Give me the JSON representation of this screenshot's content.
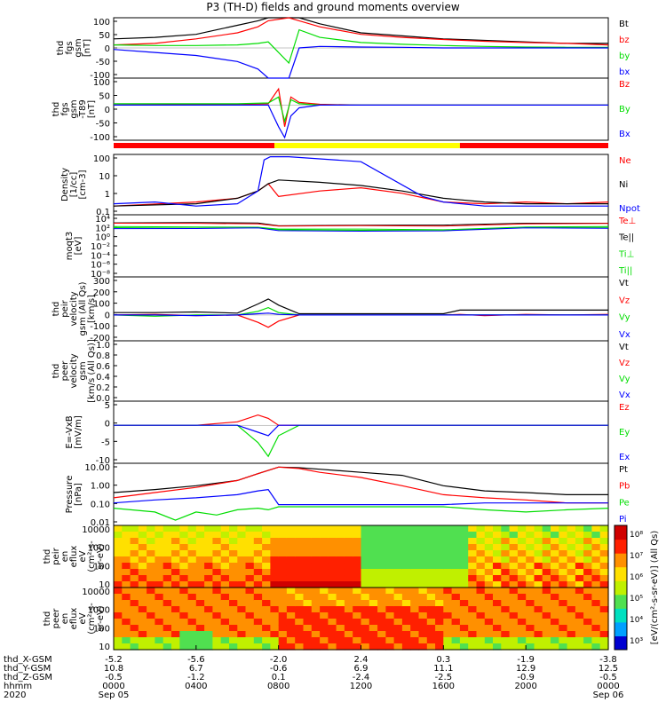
{
  "title": "P3 (TH-D) fields and ground moments overview",
  "colors": {
    "black": "#000000",
    "red": "#ff0000",
    "green": "#00dd00",
    "blue": "#0000ff",
    "yellow": "#ffff00"
  },
  "panels": [
    {
      "id": "fgs-gsm",
      "label": [
        "thd",
        "fgs",
        "gsm",
        "[nT]"
      ],
      "ticks": [
        "100",
        "50",
        "0",
        "-50",
        "-100"
      ],
      "legend": [
        {
          "t": "Bt",
          "c": "black"
        },
        {
          "t": "bz",
          "c": "red"
        },
        {
          "t": "by",
          "c": "green"
        },
        {
          "t": "bx",
          "c": "blue"
        }
      ]
    },
    {
      "id": "fgs-gsm-tilt",
      "label": [
        "thd",
        "fgs",
        "gsm",
        "-T89",
        "[nT]"
      ],
      "ticks": [
        "100",
        "50",
        "0",
        "-50",
        "-100"
      ],
      "legend": [
        {
          "t": "Bz",
          "c": "red"
        },
        {
          "t": "By",
          "c": "green"
        },
        {
          "t": "Bx",
          "c": "blue"
        }
      ]
    },
    {
      "id": "density",
      "label": [
        "Density",
        "[1/cc]",
        "[cm-3]"
      ],
      "ticks": [
        "100",
        "10",
        "1",
        "0.1"
      ],
      "legend": [
        {
          "t": "Ne",
          "c": "red"
        },
        {
          "t": "Ni",
          "c": "black"
        },
        {
          "t": "Npot",
          "c": "blue"
        }
      ]
    },
    {
      "id": "temperature",
      "label": [
        "moqt3",
        "[eV]"
      ],
      "ticks": [
        "10⁴",
        "10²",
        "10⁰",
        "10⁻²",
        "10⁻⁴",
        "10⁻⁶",
        "10⁻⁸"
      ],
      "legend": [
        {
          "t": "Te⊥",
          "c": "red"
        },
        {
          "t": "Te||",
          "c": "black"
        },
        {
          "t": "Ti⊥",
          "c": "green"
        },
        {
          "t": "Ti||",
          "c": "green"
        }
      ]
    },
    {
      "id": "peir-velocity",
      "label": [
        "thd",
        "peir",
        "velocity",
        "gsm (All Qs)",
        "[km/s]"
      ],
      "ticks": [
        "300",
        "200",
        "100",
        "0",
        "-100",
        "-200"
      ],
      "legend": [
        {
          "t": "Vt",
          "c": "black"
        },
        {
          "t": "Vz",
          "c": "red"
        },
        {
          "t": "Vy",
          "c": "green"
        },
        {
          "t": "Vx",
          "c": "blue"
        }
      ]
    },
    {
      "id": "peer-velocity",
      "label": [
        "thd",
        "peer",
        "velocity",
        "gsm",
        "[km/s (All Qs)]"
      ],
      "ticks": [
        "1.0",
        "0.8",
        "0.6",
        "0.4",
        "0.2",
        "0.0"
      ],
      "legend": [
        {
          "t": "Vt",
          "c": "black"
        },
        {
          "t": "Vz",
          "c": "red"
        },
        {
          "t": "Vy",
          "c": "green"
        },
        {
          "t": "Vx",
          "c": "blue"
        }
      ]
    },
    {
      "id": "efield",
      "label": [
        "E=-VxB",
        "[mV/m]"
      ],
      "ticks": [
        "5",
        "0",
        "-5",
        "-10"
      ],
      "legend": [
        {
          "t": "Ez",
          "c": "red"
        },
        {
          "t": "Ey",
          "c": "green"
        },
        {
          "t": "Ex",
          "c": "blue"
        }
      ]
    },
    {
      "id": "pressure",
      "label": [
        "Pressure",
        "[nPa]"
      ],
      "ticks": [
        "10.00",
        "1.00",
        "0.10",
        "0.01"
      ],
      "legend": [
        {
          "t": "Pt",
          "c": "black"
        },
        {
          "t": "Pb",
          "c": "red"
        },
        {
          "t": "Pe",
          "c": "green"
        },
        {
          "t": "Pi",
          "c": "blue"
        }
      ]
    },
    {
      "id": "peir-eflux",
      "label": [
        "thd",
        "peir",
        "en",
        "eflux",
        "eV",
        "(cm²-s-",
        "sr-eV)"
      ],
      "ticks": [
        "10000",
        "1000",
        "100",
        "10"
      ]
    },
    {
      "id": "peer-eflux",
      "label": [
        "thd",
        "peer",
        "en",
        "eflux",
        "eV",
        "(cm²-s-",
        "sr-eV)"
      ],
      "ticks": [
        "10000",
        "1000",
        "100",
        "10"
      ]
    }
  ],
  "colorbar": {
    "ticks": [
      "10⁸",
      "10⁷",
      "10⁶",
      "10⁵",
      "10⁴",
      "10³"
    ],
    "label": "[eV/(cm²-s-sr-eV)] (All Qs)"
  },
  "xaxis": {
    "row_labels": [
      "thd_X-GSM",
      "thd_Y-GSM",
      "thd_Z-GSM",
      "hhmm",
      "2020"
    ],
    "ticks": [
      {
        "x": "-5.2",
        "y": "10.8",
        "z": "-0.5",
        "t": "0000",
        "d": "Sep 05"
      },
      {
        "x": "-5.6",
        "y": "6.7",
        "z": "-1.2",
        "t": "0400",
        "d": ""
      },
      {
        "x": "-2.0",
        "y": "-0.6",
        "z": "0.1",
        "t": "0800",
        "d": ""
      },
      {
        "x": "2.4",
        "y": "6.9",
        "z": "-2.4",
        "t": "1200",
        "d": ""
      },
      {
        "x": "0.3",
        "y": "11.1",
        "z": "-2.5",
        "t": "1600",
        "d": ""
      },
      {
        "x": "-1.9",
        "y": "12.9",
        "z": "-0.9",
        "t": "2000",
        "d": ""
      },
      {
        "x": "-3.8",
        "y": "12.5",
        "z": "-0.5",
        "t": "0000",
        "d": "Sep 06"
      }
    ]
  },
  "chart_data": {
    "type": "line",
    "title": "P3 (TH-D) fields and ground moments overview",
    "x_unit": "hours since 2020-09-05 00:00",
    "xlim": [
      0,
      24
    ],
    "time_ticks": [
      "0000",
      "0400",
      "0800",
      "1200",
      "1600",
      "2000",
      "0000"
    ],
    "mode_bar": [
      {
        "from": 0,
        "to": 7.8,
        "color": "red"
      },
      {
        "from": 7.8,
        "to": 16.8,
        "color": "yellow"
      },
      {
        "from": 16.8,
        "to": 24,
        "color": "red"
      }
    ],
    "series": {
      "fgs_bt": {
        "x": [
          0,
          2,
          4,
          5,
          6,
          7,
          7.5,
          8.5,
          9,
          10,
          12,
          14,
          16,
          18,
          20,
          22,
          24
        ],
        "y": [
          30,
          35,
          45,
          60,
          75,
          90,
          100,
          100,
          100,
          80,
          50,
          40,
          30,
          25,
          20,
          15,
          15
        ]
      },
      "fgs_bz": {
        "x": [
          0,
          2,
          4,
          6,
          7,
          7.5,
          8.5,
          9,
          10,
          12,
          14,
          16,
          18,
          20,
          22,
          24
        ],
        "y": [
          10,
          15,
          30,
          50,
          70,
          90,
          100,
          90,
          70,
          45,
          35,
          28,
          22,
          18,
          15,
          10
        ]
      },
      "fgs_by": {
        "x": [
          0,
          2,
          4,
          6,
          7,
          7.5,
          8.5,
          9,
          10,
          12,
          14,
          16,
          18,
          20,
          22,
          24
        ],
        "y": [
          10,
          8,
          8,
          10,
          15,
          20,
          -50,
          60,
          35,
          18,
          12,
          8,
          5,
          3,
          2,
          2
        ]
      },
      "fgs_bx": {
        "x": [
          0,
          2,
          4,
          6,
          7,
          7.5,
          8.5,
          9,
          10,
          12,
          14,
          16,
          18,
          20,
          22,
          24
        ],
        "y": [
          -5,
          -15,
          -25,
          -45,
          -70,
          -100,
          -100,
          0,
          5,
          3,
          2,
          0,
          0,
          0,
          0,
          0
        ]
      },
      "t89_bz": {
        "x": [
          0,
          6,
          7.5,
          8,
          8.3,
          8.6,
          9,
          10,
          12,
          24
        ],
        "y": [
          0,
          2,
          5,
          60,
          -80,
          30,
          10,
          3,
          0,
          0
        ]
      },
      "t89_by": {
        "x": [
          0,
          6,
          7.5,
          8,
          8.3,
          8.6,
          9,
          10,
          12,
          24
        ],
        "y": [
          5,
          5,
          8,
          30,
          -60,
          20,
          5,
          0,
          0,
          0
        ]
      },
      "t89_bx": {
        "x": [
          0,
          6,
          7.5,
          8,
          8.3,
          8.6,
          9,
          10,
          12,
          24
        ],
        "y": [
          0,
          0,
          0,
          -80,
          -120,
          -40,
          -10,
          0,
          0,
          0
        ]
      },
      "ne": {
        "x": [
          0,
          4,
          6,
          7,
          7.5,
          8,
          10,
          12,
          14,
          16,
          18,
          20,
          22,
          24
        ],
        "y": [
          0.3,
          0.5,
          0.8,
          2,
          5,
          1,
          2,
          3,
          1.5,
          0.5,
          0.4,
          0.5,
          0.4,
          0.5
        ]
      },
      "ni": {
        "x": [
          0,
          4,
          6,
          7,
          7.5,
          8,
          10,
          12,
          14,
          16,
          18,
          20,
          22,
          24
        ],
        "y": [
          0.3,
          0.4,
          0.8,
          2,
          5,
          8,
          6,
          4,
          2,
          0.8,
          0.5,
          0.4,
          0.4,
          0.4
        ]
      },
      "npot": {
        "x": [
          0,
          2,
          4,
          6,
          7,
          7.3,
          7.6,
          8,
          8.5,
          12,
          15,
          16,
          18,
          20,
          22,
          24
        ],
        "y": [
          0.4,
          0.5,
          0.3,
          0.4,
          2,
          100,
          150,
          150,
          150,
          80,
          1,
          0.5,
          0.3,
          0.3,
          0.3,
          0.3
        ]
      },
      "peir_vt": {
        "x": [
          0,
          2,
          4,
          6,
          7,
          7.5,
          8,
          9,
          12,
          16,
          16.8,
          18,
          20,
          22,
          24
        ],
        "y": [
          20,
          20,
          25,
          15,
          90,
          130,
          80,
          10,
          10,
          10,
          40,
          40,
          40,
          40,
          40
        ]
      },
      "peir_vz": {
        "x": [
          0,
          2,
          4,
          6,
          7,
          7.5,
          8,
          9,
          12,
          16,
          16.8,
          18,
          20,
          22,
          24
        ],
        "y": [
          0,
          5,
          -5,
          0,
          -60,
          -100,
          -50,
          0,
          0,
          0,
          5,
          -5,
          5,
          0,
          5
        ]
      },
      "peir_vy": {
        "x": [
          0,
          2,
          4,
          6,
          7,
          7.5,
          8,
          9,
          12,
          16,
          16.8,
          18,
          20,
          22,
          24
        ],
        "y": [
          0,
          -10,
          0,
          0,
          30,
          60,
          20,
          0,
          0,
          0,
          0,
          0,
          0,
          0,
          0
        ]
      },
      "peir_vx": {
        "x": [
          0,
          2,
          4,
          6,
          7,
          7.5,
          8,
          9,
          12,
          16,
          16.8,
          18,
          20,
          22,
          24
        ],
        "y": [
          0,
          0,
          -5,
          0,
          10,
          15,
          5,
          0,
          0,
          0,
          0,
          0,
          0,
          0,
          0
        ]
      },
      "ez": {
        "x": [
          0,
          2,
          4,
          6,
          7,
          7.5,
          8,
          24
        ],
        "y": [
          0,
          0,
          0,
          1,
          3,
          2,
          0,
          0
        ]
      },
      "ey": {
        "x": [
          0,
          2,
          4,
          6,
          7,
          7.5,
          8,
          9,
          12,
          16,
          16.8,
          18,
          20,
          22,
          24
        ],
        "y": [
          0,
          0,
          0,
          0,
          -5,
          -9,
          -3,
          0,
          0,
          0,
          0,
          0,
          0,
          0,
          0
        ]
      },
      "ex": {
        "x": [
          0,
          2,
          4,
          6,
          7,
          7.5,
          8,
          24
        ],
        "y": [
          0,
          0,
          0,
          0,
          -2,
          -3,
          0,
          0
        ]
      },
      "pt": {
        "x": [
          0,
          2,
          4,
          6,
          7,
          8,
          9,
          10,
          12,
          14,
          16,
          18,
          20,
          22,
          24
        ],
        "y": [
          0.4,
          0.6,
          1,
          2,
          5,
          12,
          11,
          9,
          6,
          4,
          1,
          0.5,
          0.4,
          0.3,
          0.3
        ]
      },
      "pb": {
        "x": [
          0,
          2,
          4,
          6,
          7,
          8,
          9,
          10,
          12,
          14,
          16,
          18,
          20,
          22,
          24
        ],
        "y": [
          0.2,
          0.4,
          0.8,
          2,
          5,
          12,
          10,
          6,
          3,
          1,
          0.3,
          0.2,
          0.15,
          0.1,
          0.1
        ]
      },
      "pe": {
        "x": [
          0,
          2,
          3,
          4,
          5,
          6,
          7,
          7.5,
          8,
          9,
          12,
          16,
          18,
          20,
          22,
          24
        ],
        "y": [
          0.05,
          0.03,
          0.01,
          0.03,
          0.02,
          0.04,
          0.05,
          0.04,
          0.06,
          0.06,
          0.06,
          0.06,
          0.04,
          0.03,
          0.04,
          0.05
        ]
      },
      "pi": {
        "x": [
          0,
          2,
          4,
          6,
          7,
          7.5,
          8,
          9,
          12,
          16,
          18,
          20,
          22,
          24
        ],
        "y": [
          0.1,
          0.15,
          0.2,
          0.3,
          0.5,
          0.6,
          0.08,
          0.08,
          0.08,
          0.08,
          0.1,
          0.1,
          0.1,
          0.1
        ]
      }
    },
    "spectrogram_colors": [
      "#0000d0",
      "#00a0ff",
      "#00e0c0",
      "#50e050",
      "#c0f000",
      "#ffe000",
      "#ff9000",
      "#ff2000",
      "#d00000"
    ]
  }
}
